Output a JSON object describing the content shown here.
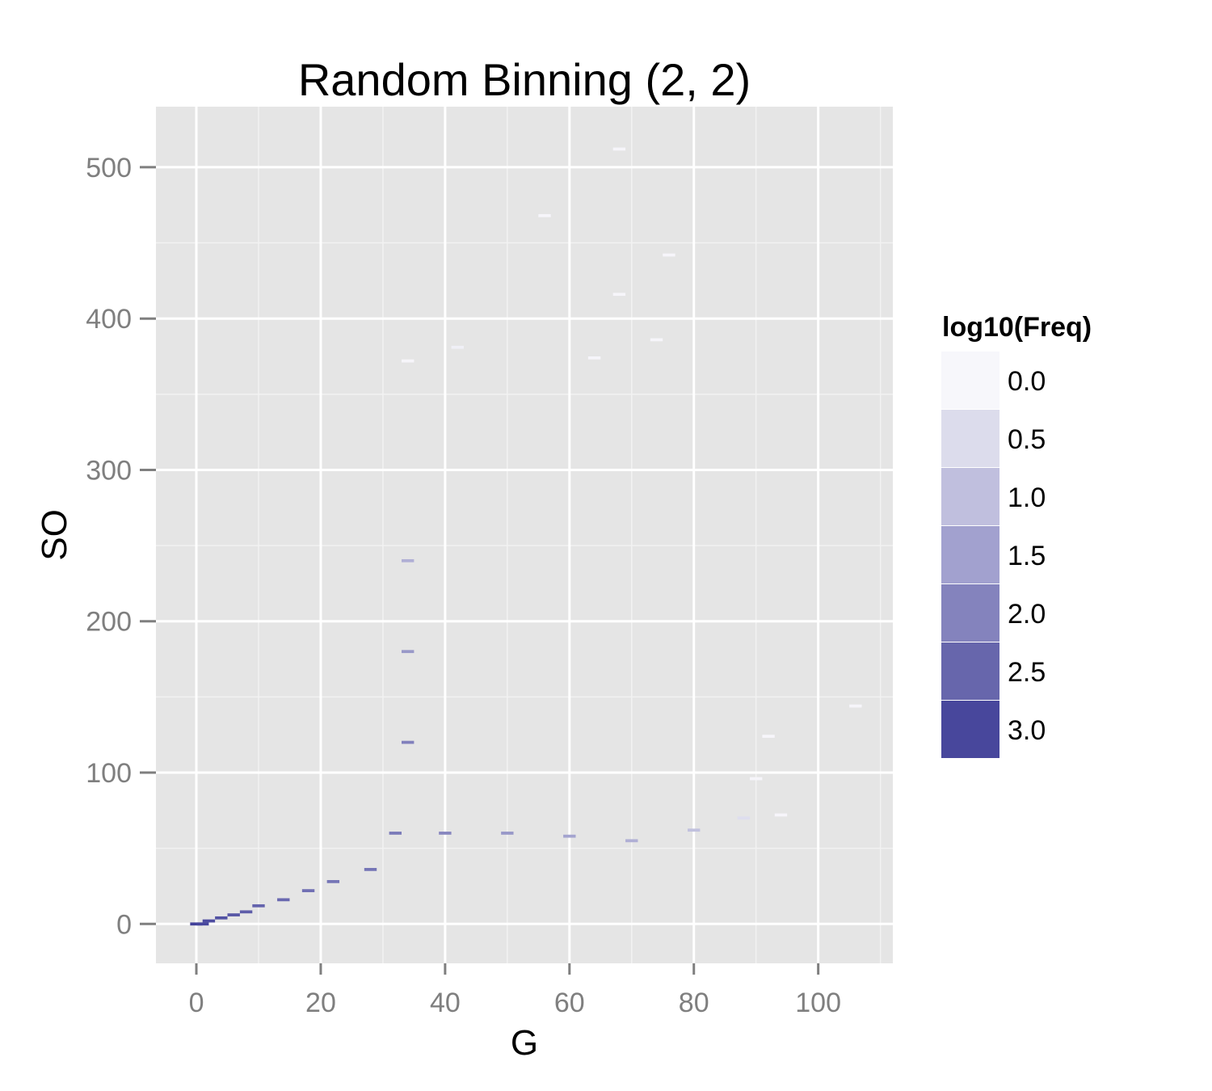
{
  "chart_data": {
    "type": "heatmap",
    "title": "Random Binning (2, 2)",
    "xlabel": "G",
    "ylabel": "SO",
    "xlim": [
      -6.5,
      112
    ],
    "ylim": [
      -26,
      540
    ],
    "x_ticks": [
      0,
      20,
      40,
      60,
      80,
      100
    ],
    "y_ticks": [
      0,
      100,
      200,
      300,
      400,
      500
    ],
    "x_tick_labels": [
      "0",
      "20",
      "40",
      "60",
      "80",
      "100"
    ],
    "y_tick_labels": [
      "0",
      "100",
      "200",
      "300",
      "400",
      "500"
    ],
    "grid": true,
    "bin_size": [
      2,
      2
    ],
    "legend": {
      "title": "log10(Freq)",
      "position": "right",
      "breaks": [
        "0.0",
        "0.5",
        "1.0",
        "1.5",
        "2.0",
        "2.5",
        "3.0"
      ],
      "colors": [
        "#f7f7fb",
        "#dcdcec",
        "#c0bfde",
        "#a2a1cf",
        "#8483bd",
        "#6766ac",
        "#48479c"
      ]
    },
    "value_range": [
      0,
      3.1
    ],
    "color_low": "#ffffff",
    "color_high": "#41409a",
    "bins": [
      {
        "x": 0,
        "y": 0,
        "log10_freq": 3.1
      },
      {
        "x": 1,
        "y": 0,
        "log10_freq": 3.0
      },
      {
        "x": 2,
        "y": 2,
        "log10_freq": 2.9
      },
      {
        "x": 4,
        "y": 4,
        "log10_freq": 2.8
      },
      {
        "x": 6,
        "y": 6,
        "log10_freq": 2.7
      },
      {
        "x": 8,
        "y": 8,
        "log10_freq": 2.6
      },
      {
        "x": 10,
        "y": 12,
        "log10_freq": 2.5
      },
      {
        "x": 14,
        "y": 16,
        "log10_freq": 2.4
      },
      {
        "x": 18,
        "y": 22,
        "log10_freq": 2.3
      },
      {
        "x": 22,
        "y": 28,
        "log10_freq": 2.2
      },
      {
        "x": 28,
        "y": 36,
        "log10_freq": 2.2
      },
      {
        "x": 32,
        "y": 60,
        "log10_freq": 2.1
      },
      {
        "x": 34,
        "y": 120,
        "log10_freq": 2.0
      },
      {
        "x": 34,
        "y": 180,
        "log10_freq": 1.6
      },
      {
        "x": 34,
        "y": 240,
        "log10_freq": 1.2
      },
      {
        "x": 40,
        "y": 60,
        "log10_freq": 1.9
      },
      {
        "x": 50,
        "y": 60,
        "log10_freq": 1.6
      },
      {
        "x": 60,
        "y": 58,
        "log10_freq": 1.4
      },
      {
        "x": 70,
        "y": 55,
        "log10_freq": 1.2
      },
      {
        "x": 80,
        "y": 62,
        "log10_freq": 0.9
      },
      {
        "x": 88,
        "y": 70,
        "log10_freq": 0.4
      },
      {
        "x": 68,
        "y": 512,
        "log10_freq": 0.0
      },
      {
        "x": 56,
        "y": 468,
        "log10_freq": 0.0
      },
      {
        "x": 76,
        "y": 442,
        "log10_freq": 0.0
      },
      {
        "x": 68,
        "y": 416,
        "log10_freq": 0.0
      },
      {
        "x": 74,
        "y": 386,
        "log10_freq": 0.0
      },
      {
        "x": 42,
        "y": 381,
        "log10_freq": 0.1
      },
      {
        "x": 34,
        "y": 372,
        "log10_freq": 0.0
      },
      {
        "x": 64,
        "y": 374,
        "log10_freq": 0.0
      },
      {
        "x": 106,
        "y": 144,
        "log10_freq": 0.0
      },
      {
        "x": 92,
        "y": 124,
        "log10_freq": 0.0
      },
      {
        "x": 94,
        "y": 72,
        "log10_freq": 0.0
      },
      {
        "x": 90,
        "y": 96,
        "log10_freq": 0.0
      }
    ]
  }
}
